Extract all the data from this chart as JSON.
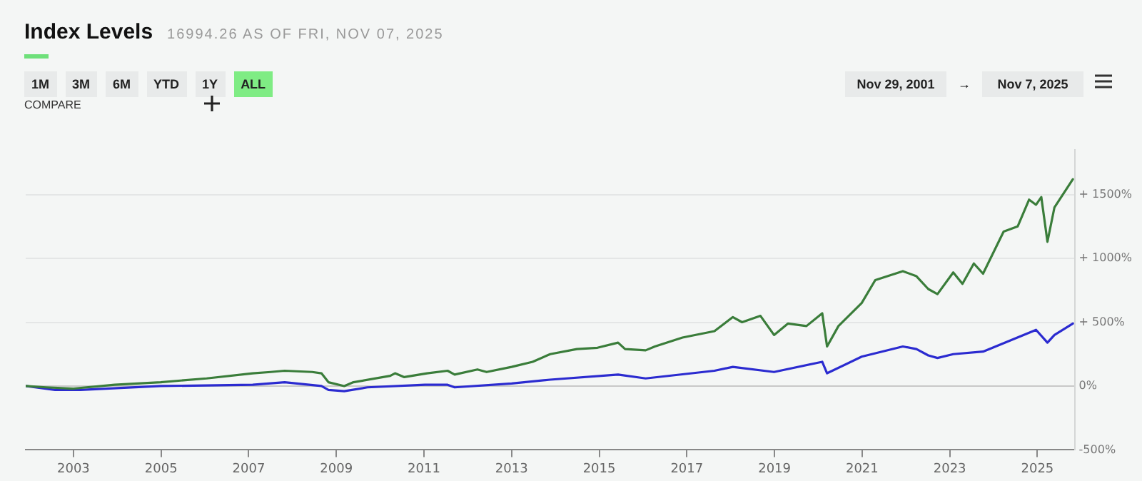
{
  "chart_data": {
    "type": "line",
    "title": "Index Levels",
    "subtitle": "16994.26 AS OF FRI, NOV 07, 2025",
    "annotations": [
      "1M",
      "3M",
      "6M",
      "YTD",
      "1Y",
      "ALL",
      "COMPARE",
      "Nov 29, 2001",
      "→",
      "Nov 7, 2025"
    ],
    "xlim": [
      2001.91,
      2025.85
    ],
    "xticks": [
      2003,
      2005,
      2007,
      2009,
      2011,
      2013,
      2015,
      2017,
      2019,
      2021,
      2023,
      2025
    ],
    "ylim": [
      -500,
      1850
    ],
    "yticks": [
      {
        "value": -500,
        "label": "-500%"
      },
      {
        "value": 0,
        "label": "0%"
      },
      {
        "value": 500,
        "label": "+ 500%"
      },
      {
        "value": 1000,
        "label": "+ 1000%"
      },
      {
        "value": 1500,
        "label": "+ 1500%"
      }
    ],
    "grid": "y",
    "legend": false,
    "marker": "none",
    "line_style": "solid",
    "series": [
      {
        "color": "#3a7d3a",
        "x": [
          2001.91,
          2002.37,
          2003.0,
          2003.94,
          2004.99,
          2006.04,
          2007.09,
          2007.5,
          2007.82,
          2008.45,
          2008.66,
          2008.82,
          2009.18,
          2009.39,
          2010.23,
          2010.34,
          2010.55,
          2011.07,
          2011.54,
          2011.7,
          2012.22,
          2012.43,
          2013.0,
          2013.48,
          2013.88,
          2014.49,
          2014.96,
          2015.43,
          2015.59,
          2016.06,
          2016.27,
          2016.9,
          2017.63,
          2018.05,
          2018.26,
          2018.68,
          2018.99,
          2019.31,
          2019.73,
          2020.09,
          2020.2,
          2020.46,
          2020.99,
          2021.3,
          2021.93,
          2022.24,
          2022.51,
          2022.72,
          2023.08,
          2023.29,
          2023.55,
          2023.76,
          2024.23,
          2024.55,
          2024.81,
          2024.97,
          2025.09,
          2025.23,
          2025.39,
          2025.81
        ],
        "values": [
          0,
          -10,
          -20,
          10,
          30,
          60,
          100,
          110,
          120,
          110,
          100,
          30,
          0,
          30,
          80,
          100,
          70,
          100,
          120,
          90,
          130,
          110,
          150,
          190,
          250,
          290,
          300,
          340,
          290,
          280,
          310,
          380,
          430,
          540,
          500,
          550,
          400,
          490,
          470,
          570,
          310,
          470,
          650,
          830,
          900,
          860,
          760,
          720,
          890,
          800,
          960,
          880,
          1210,
          1250,
          1460,
          1420,
          1480,
          1130,
          1400,
          1620
        ]
      },
      {
        "color": "#2b2bd0",
        "x": [
          2001.91,
          2002.58,
          2003.16,
          2004.99,
          2007.09,
          2007.82,
          2008.66,
          2008.82,
          2009.18,
          2009.71,
          2011.02,
          2011.54,
          2011.7,
          2013.0,
          2013.88,
          2015.43,
          2016.06,
          2017.63,
          2018.05,
          2018.99,
          2020.09,
          2020.2,
          2020.99,
          2021.93,
          2022.24,
          2022.51,
          2022.72,
          2023.08,
          2023.76,
          2024.97,
          2025.23,
          2025.39,
          2025.81
        ],
        "values": [
          0,
          -30,
          -30,
          0,
          10,
          30,
          0,
          -30,
          -40,
          -10,
          10,
          10,
          -10,
          20,
          50,
          90,
          60,
          120,
          150,
          110,
          190,
          100,
          230,
          310,
          290,
          240,
          220,
          250,
          270,
          440,
          340,
          400,
          490
        ]
      }
    ]
  }
}
